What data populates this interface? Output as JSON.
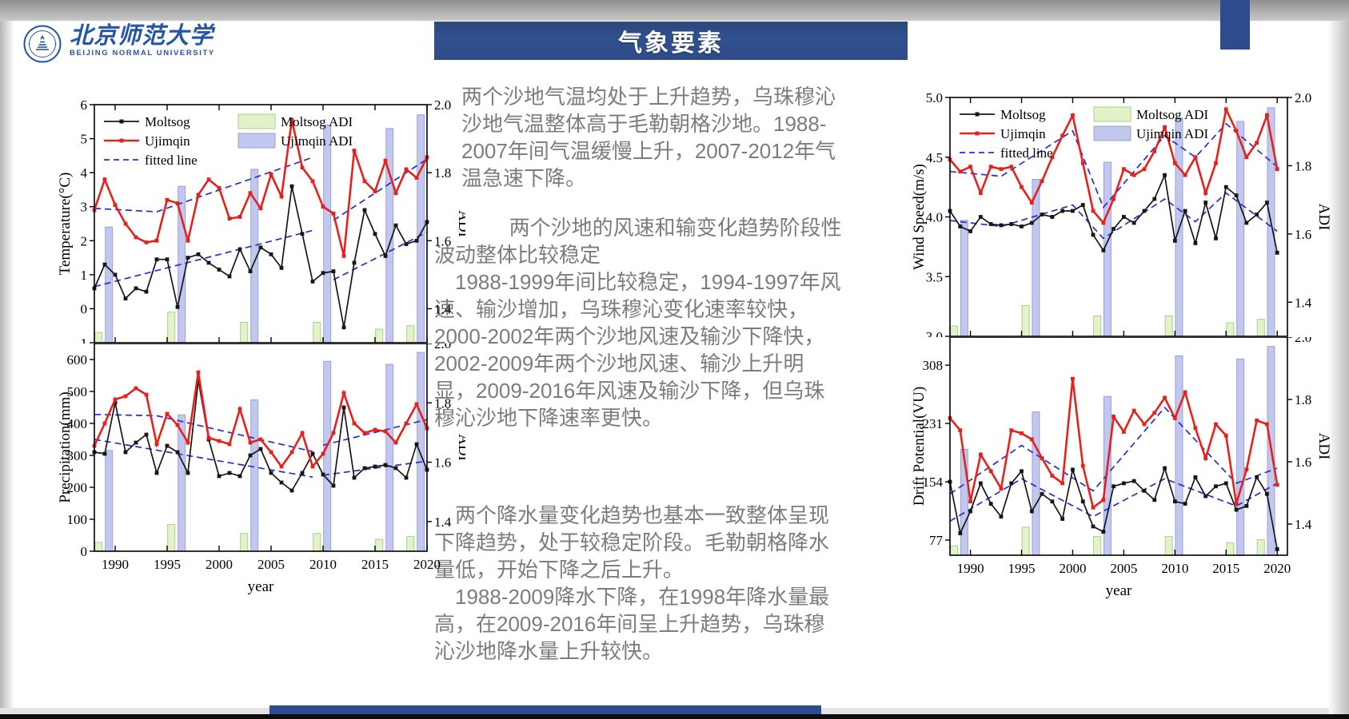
{
  "header": {
    "title": "气象要素"
  },
  "logo": {
    "name_cn": "北京师范大学",
    "name_en": "BEIJING NORMAL UNIVERSITY"
  },
  "text_panel": {
    "para1": "两个沙地气温均处于上升趋势，乌珠穆沁沙地气温整体高于毛勒朝格沙地。1988-2007年间气温缓慢上升，2007-2012年气温急速下降。",
    "para2a": "两个沙地的风速和输变化趋势阶段性波动整体比较稳定",
    "para2b": "1988-1999年间比较稳定，1994-1997年风速、输沙增加，乌珠穆沁变化速率较快， 2000-2002年两个沙地风速及输沙下降快， 2002-2009年两个沙地风速、输沙上升明显，2009-2016年风速及输沙下降，但乌珠穆沁沙地下降速率更快。",
    "para3a": "两个降水量变化趋势也基本一致整体呈现下降趋势，处于较稳定阶段。毛勒朝格降水量低，开始下降之后上升。",
    "para3b": "1988-2009降水下降，在1998年降水量最高，在2009-2016年间呈上升趋势，乌珠穆沁沙地降水量上升较快。"
  },
  "legend": {
    "moltsog": "Moltsog",
    "ujimqin": "Ujimqin",
    "fitted": "fitted line",
    "moltsog_adi": "Moltsog ADI",
    "ujimqin_adi": "Ujimqin ADI"
  },
  "colors": {
    "moltsog": "#161616",
    "ujimqin": "#e2231d",
    "fitted": "#2b2bd0",
    "moltsog_adi_fill": "#e3f3c8",
    "moltsog_adi_stroke": "#a9cf8d",
    "ujimqin_adi_fill": "#c2c7ee",
    "ujimqin_adi_stroke": "#98a2d8",
    "banner": "#2c4c8e",
    "text_gray": "#7c7c7c",
    "logo_blue": "#2456a4"
  },
  "axes": {
    "x_label": "year",
    "x_ticks": [
      1990,
      1995,
      2000,
      2005,
      2010,
      2015,
      2020
    ],
    "adi_label": "ADI",
    "adi_ticks": [
      1.4,
      1.6,
      1.8,
      2.0
    ],
    "adi_tick_labels": [
      "1.4",
      "1.6",
      "1.8",
      "2.0"
    ],
    "adi_range": [
      1.3,
      2.0
    ]
  },
  "years": [
    1988,
    1989,
    1990,
    1991,
    1992,
    1993,
    1994,
    1995,
    1996,
    1997,
    1998,
    1999,
    2000,
    2001,
    2002,
    2003,
    2004,
    2005,
    2006,
    2007,
    2008,
    2009,
    2010,
    2011,
    2012,
    2013,
    2014,
    2015,
    2016,
    2017,
    2018,
    2019,
    2020
  ],
  "adi_bars": {
    "moltsog": {
      "years": [
        1988,
        1995,
        2002,
        2009,
        2015,
        2018
      ],
      "values": [
        1.33,
        1.39,
        1.36,
        1.36,
        1.34,
        1.35
      ]
    },
    "ujimqin": {
      "years": [
        1989,
        1996,
        2003,
        2010,
        2016,
        2019
      ],
      "values": [
        1.64,
        1.76,
        1.81,
        1.94,
        1.93,
        1.97
      ]
    }
  },
  "chart_data": [
    {
      "id": "temperature",
      "type": "line+bar",
      "ylabel": "Temperature(°C)",
      "ylim": [
        -1,
        6
      ],
      "yticks": [
        -1,
        0,
        1,
        2,
        3,
        4,
        5,
        6
      ],
      "ytick_labels": [
        "-1",
        "0",
        "1",
        "2",
        "3",
        "4",
        "5",
        "6"
      ],
      "xlabel": "year",
      "show_legend": true,
      "series": [
        {
          "name": "Moltsog",
          "values": [
            0.6,
            1.3,
            1.0,
            0.3,
            0.6,
            0.5,
            1.45,
            1.45,
            0.05,
            1.5,
            1.6,
            1.35,
            1.15,
            0.95,
            1.75,
            1.1,
            1.8,
            1.6,
            1.2,
            3.6,
            2.2,
            0.8,
            1.05,
            1.1,
            -0.55,
            1.35,
            2.9,
            2.2,
            1.55,
            2.45,
            1.9,
            2.0,
            2.55
          ]
        },
        {
          "name": "Ujimqin",
          "values": [
            2.9,
            3.8,
            3.05,
            2.5,
            2.1,
            1.95,
            2.0,
            3.2,
            3.1,
            2.0,
            3.35,
            3.8,
            3.55,
            2.65,
            2.7,
            3.4,
            2.95,
            3.95,
            3.3,
            5.55,
            4.15,
            3.75,
            3.0,
            2.8,
            1.55,
            4.65,
            3.75,
            3.45,
            4.35,
            3.4,
            4.1,
            3.85,
            4.45
          ]
        }
      ],
      "fitted": [
        {
          "series": "Moltsog",
          "points": [
            [
              1988,
              0.65
            ],
            [
              2009,
              2.3
            ]
          ]
        },
        {
          "series": "Moltsog",
          "points": [
            [
              2011,
              0.85
            ],
            [
              2020,
              2.25
            ]
          ]
        },
        {
          "series": "Ujimqin",
          "points": [
            [
              1988,
              2.95
            ],
            [
              1994,
              2.85
            ],
            [
              2009,
              4.45
            ]
          ]
        },
        {
          "series": "Ujimqin",
          "points": [
            [
              2011,
              2.6
            ],
            [
              2020,
              4.4
            ]
          ]
        }
      ]
    },
    {
      "id": "precipitation",
      "type": "line+bar",
      "ylabel": "Precipitation(mm)",
      "ylim": [
        0,
        650
      ],
      "yticks": [
        0,
        100,
        200,
        300,
        400,
        500,
        600
      ],
      "ytick_labels": [
        "0",
        "100",
        "200",
        "300",
        "400",
        "500",
        "600"
      ],
      "xlabel": "year",
      "show_legend": false,
      "series": [
        {
          "name": "Moltsog",
          "values": [
            310,
            305,
            465,
            310,
            340,
            365,
            245,
            330,
            310,
            245,
            535,
            350,
            235,
            245,
            235,
            300,
            320,
            245,
            215,
            190,
            245,
            305,
            240,
            205,
            450,
            230,
            260,
            265,
            270,
            260,
            230,
            335,
            255
          ]
        },
        {
          "name": "Ujimqin",
          "values": [
            330,
            400,
            475,
            485,
            510,
            490,
            335,
            430,
            395,
            340,
            560,
            355,
            345,
            335,
            445,
            340,
            350,
            310,
            265,
            310,
            370,
            265,
            305,
            370,
            495,
            400,
            370,
            380,
            375,
            340,
            400,
            460,
            385
          ]
        }
      ],
      "fitted": [
        {
          "series": "Moltsog",
          "points": [
            [
              1988,
              350
            ],
            [
              2009,
              232
            ]
          ]
        },
        {
          "series": "Moltsog",
          "points": [
            [
              2010,
              238
            ],
            [
              2020,
              282
            ]
          ]
        },
        {
          "series": "Ujimqin",
          "points": [
            [
              1988,
              428
            ],
            [
              1994,
              424
            ],
            [
              2009,
              312
            ]
          ]
        },
        {
          "series": "Ujimqin",
          "points": [
            [
              2010,
              332
            ],
            [
              2020,
              412
            ]
          ]
        }
      ]
    },
    {
      "id": "wind_speed",
      "type": "line+bar",
      "ylabel": "Wind Speed(m/s)",
      "ylim": [
        3.0,
        5.0
      ],
      "yticks": [
        3.0,
        3.5,
        4.0,
        4.5,
        5.0
      ],
      "ytick_labels": [
        "3.0",
        "3.5",
        "4.0",
        "4.5",
        "5.0"
      ],
      "xlabel": "year",
      "show_legend": true,
      "series": [
        {
          "name": "Moltsog",
          "values": [
            4.05,
            3.92,
            3.88,
            4.0,
            3.94,
            3.93,
            3.94,
            3.92,
            3.95,
            4.02,
            4.0,
            4.05,
            4.05,
            4.1,
            3.85,
            3.72,
            3.9,
            4.0,
            3.95,
            4.05,
            4.15,
            4.35,
            3.8,
            4.05,
            3.78,
            4.12,
            3.82,
            4.25,
            4.18,
            3.95,
            4.02,
            4.12,
            3.7
          ]
        },
        {
          "name": "Ujimqin",
          "values": [
            4.48,
            4.38,
            4.42,
            4.2,
            4.42,
            4.4,
            4.42,
            4.25,
            4.12,
            4.3,
            4.5,
            4.68,
            4.85,
            4.45,
            4.05,
            3.95,
            4.15,
            4.4,
            4.35,
            4.4,
            4.55,
            4.75,
            4.45,
            4.35,
            4.5,
            4.2,
            4.45,
            4.9,
            4.72,
            4.5,
            4.62,
            4.85,
            4.4
          ]
        }
      ],
      "fitted": [
        {
          "series": "Moltsog",
          "points": [
            [
              1988,
              3.97
            ],
            [
              1993,
              3.92
            ],
            [
              2000,
              4.1
            ],
            [
              2003,
              3.82
            ],
            [
              2009,
              4.15
            ],
            [
              2012,
              3.96
            ],
            [
              2015,
              4.2
            ],
            [
              2020,
              3.88
            ]
          ]
        },
        {
          "series": "Ujimqin",
          "points": [
            [
              1988,
              4.38
            ],
            [
              1993,
              4.34
            ],
            [
              2000,
              4.72
            ],
            [
              2003,
              4.08
            ],
            [
              2009,
              4.68
            ],
            [
              2012,
              4.5
            ],
            [
              2015,
              4.78
            ],
            [
              2020,
              4.42
            ]
          ]
        }
      ]
    },
    {
      "id": "drift_potential",
      "type": "line+bar",
      "ylabel": "Drift Potential(VU)",
      "ylim": [
        57,
        345
      ],
      "yticks": [
        77,
        154,
        231,
        308
      ],
      "ytick_labels": [
        "77",
        "154",
        "231",
        "308"
      ],
      "xlabel": "year",
      "show_legend": false,
      "series": [
        {
          "name": "Moltsog",
          "values": [
            154,
            86,
            115,
            152,
            125,
            108,
            152,
            168,
            115,
            138,
            128,
            105,
            170,
            128,
            95,
            88,
            148,
            152,
            155,
            142,
            130,
            172,
            128,
            125,
            160,
            135,
            148,
            152,
            117,
            122,
            160,
            138,
            65
          ]
        },
        {
          "name": "Ujimqin",
          "values": [
            238,
            222,
            128,
            190,
            168,
            145,
            222,
            218,
            210,
            185,
            162,
            152,
            290,
            175,
            120,
            130,
            240,
            220,
            248,
            230,
            245,
            265,
            238,
            272,
            225,
            185,
            230,
            215,
            125,
            170,
            235,
            230,
            150
          ]
        }
      ],
      "fitted": [
        {
          "series": "Moltsog",
          "points": [
            [
              1988,
              102
            ],
            [
              1995,
              158
            ],
            [
              2002,
              108
            ],
            [
              2009,
              158
            ],
            [
              2016,
              122
            ],
            [
              2020,
              152
            ]
          ]
        },
        {
          "series": "Ujimqin",
          "points": [
            [
              1988,
              138
            ],
            [
              1995,
              202
            ],
            [
              2002,
              142
            ],
            [
              2009,
              252
            ],
            [
              2016,
              152
            ],
            [
              2020,
              172
            ]
          ]
        }
      ]
    }
  ]
}
